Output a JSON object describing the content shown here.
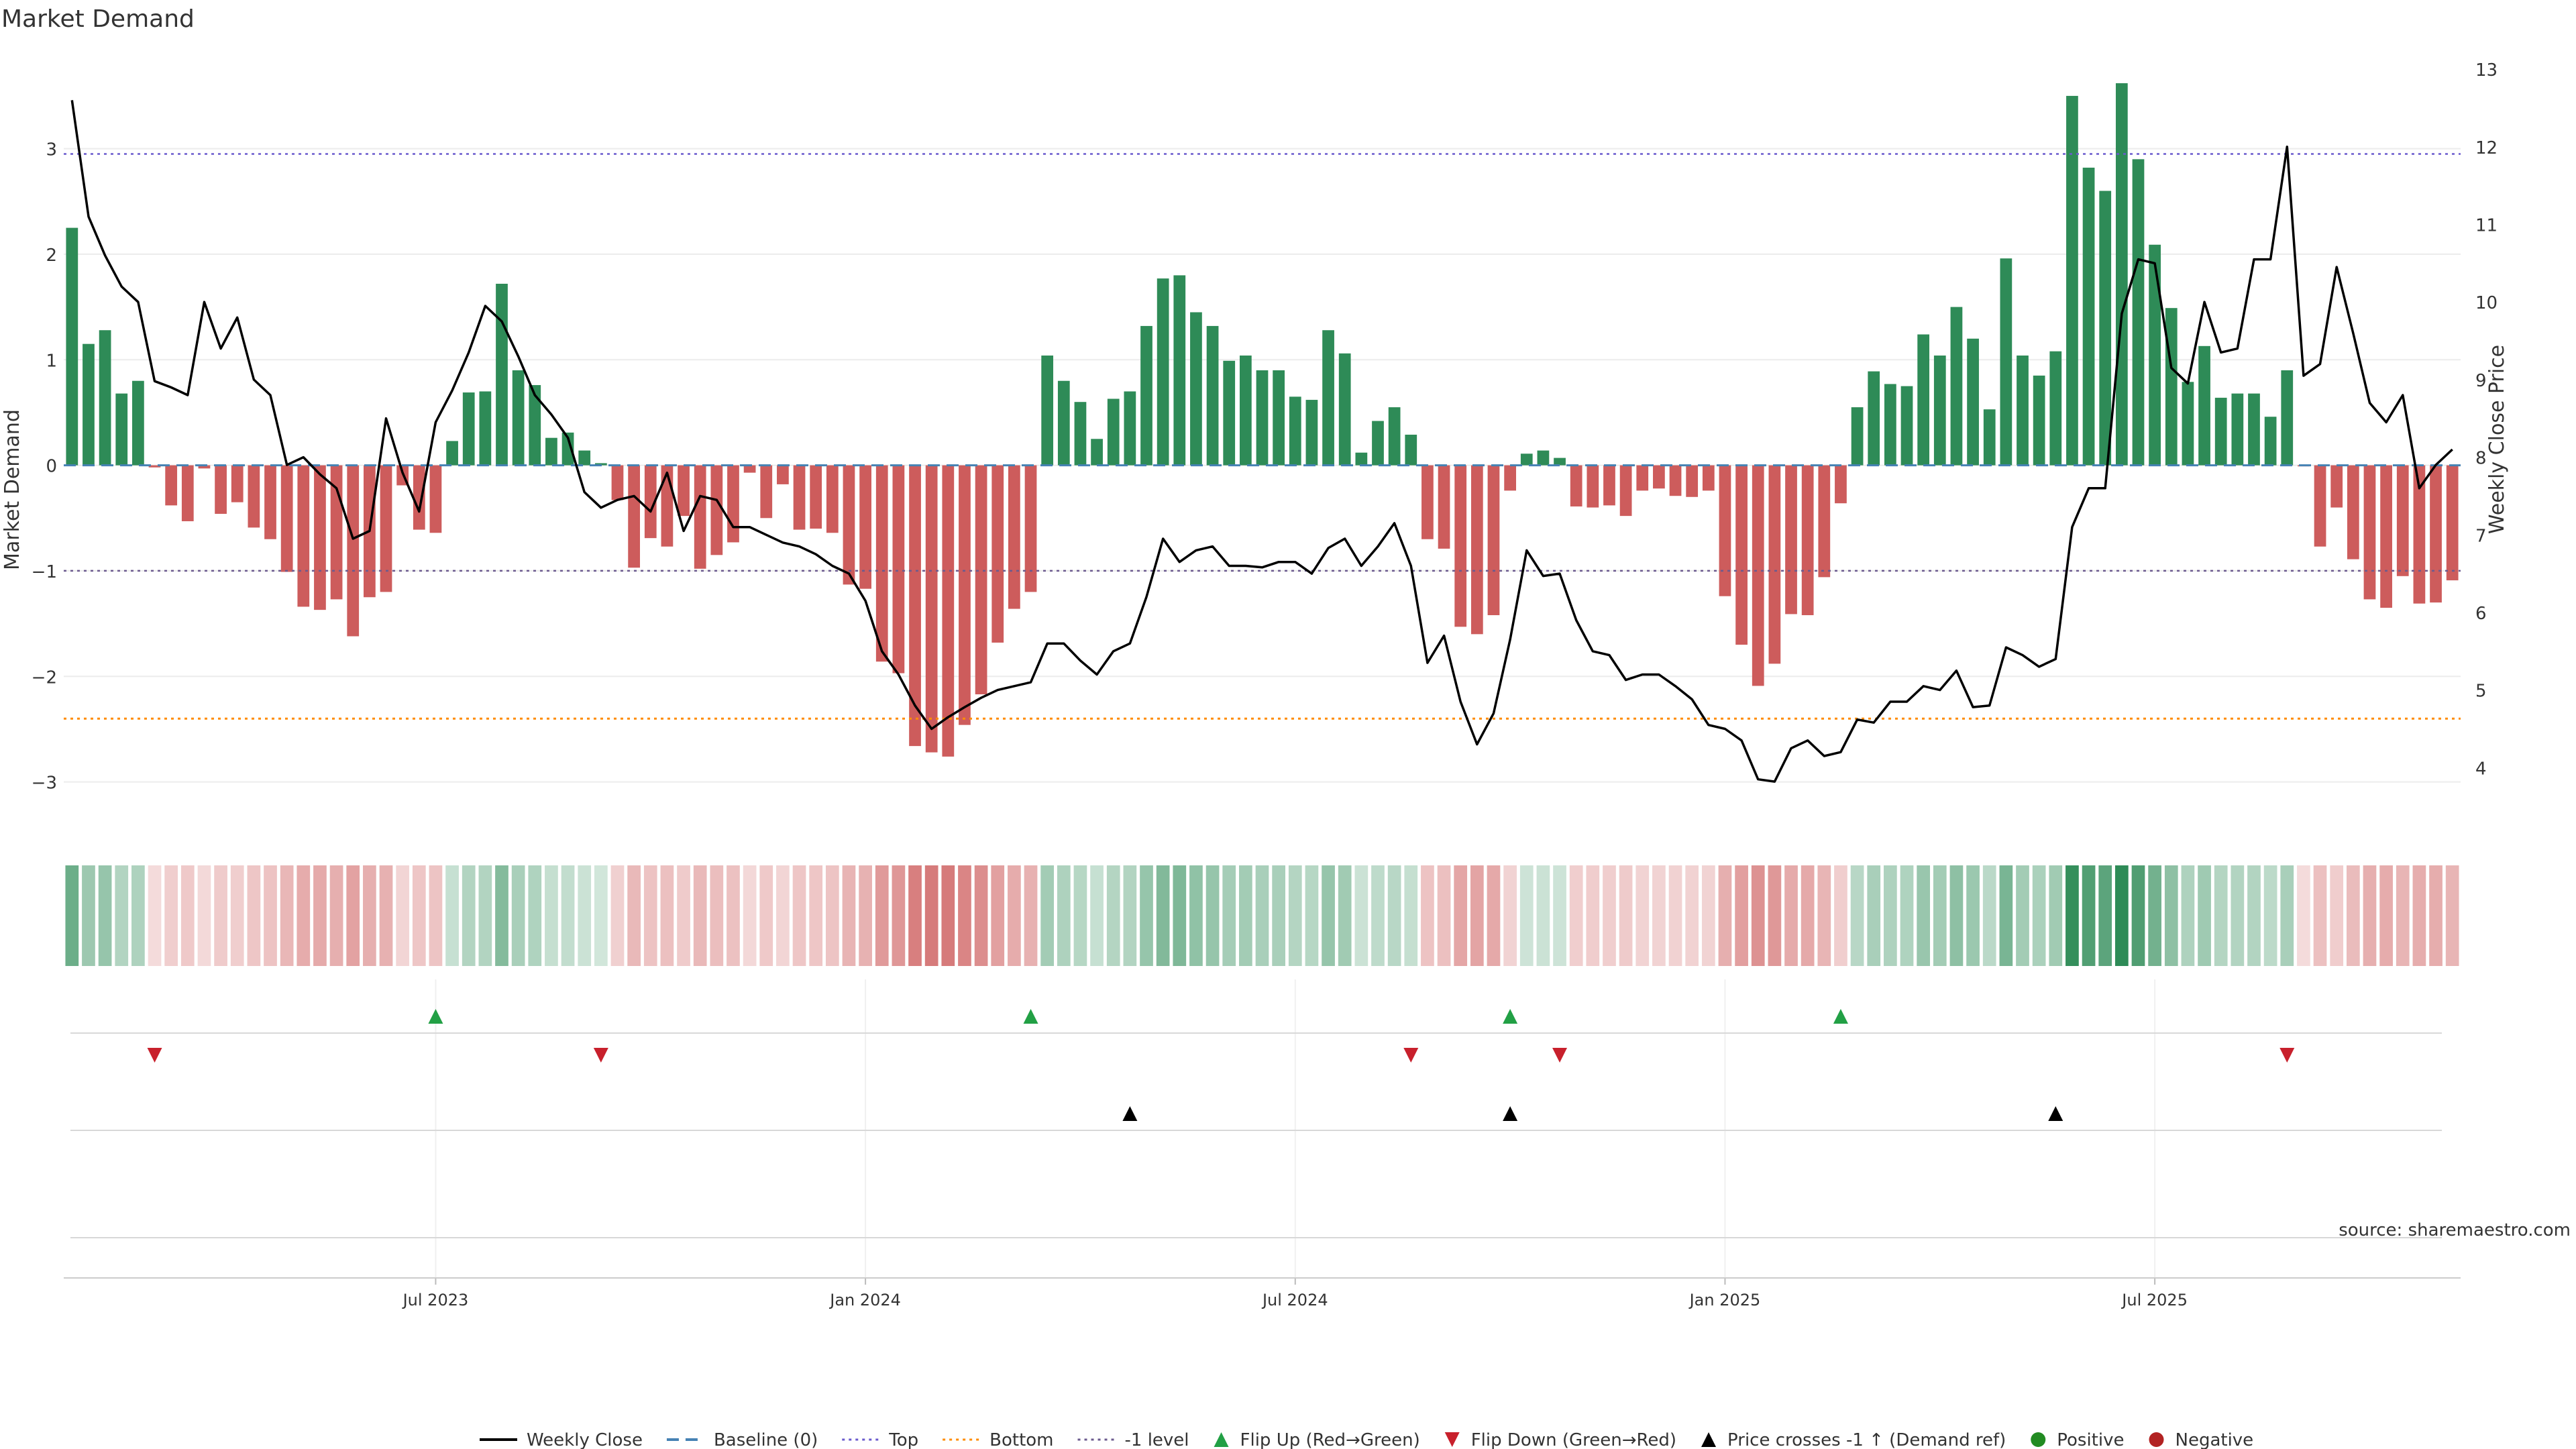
{
  "chart_data": {
    "type": "bar",
    "title": "Market Demand",
    "ylabel_left": "Market Demand",
    "ylabel_right": "Weekly Close Price",
    "source": "source: sharemaestro.com",
    "ylim_left": [
      -3.6,
      3.9
    ],
    "ylim_right": [
      3.0,
      13.2
    ],
    "yticks_left": [
      "−3",
      "−2",
      "−1",
      "0",
      "1",
      "2",
      "3"
    ],
    "yticks_right": [
      "4",
      "5",
      "6",
      "7",
      "8",
      "9",
      "10",
      "11",
      "12",
      "13"
    ],
    "x_tick_labels": [
      "Jul 2023",
      "Jan 2024",
      "Jul 2024",
      "Jan 2025",
      "Jul 2025"
    ],
    "x_tick_weeks": [
      22,
      48,
      74,
      100,
      126
    ],
    "levels": {
      "top": 2.95,
      "bottom": -2.4,
      "minus_one": -1.0
    },
    "demand": [
      2.25,
      1.15,
      1.28,
      0.68,
      0.8,
      -0.02,
      -0.38,
      -0.53,
      -0.03,
      -0.46,
      -0.35,
      -0.59,
      -0.7,
      -1.01,
      -1.34,
      -1.37,
      -1.27,
      -1.62,
      -1.25,
      -1.2,
      -0.19,
      -0.61,
      -0.64,
      0.23,
      0.69,
      0.7,
      1.72,
      0.9,
      0.76,
      0.26,
      0.31,
      0.14,
      0.02,
      -0.33,
      -0.97,
      -0.69,
      -0.77,
      -0.48,
      -0.98,
      -0.85,
      -0.73,
      -0.07,
      -0.5,
      -0.18,
      -0.61,
      -0.6,
      -0.64,
      -1.13,
      -1.17,
      -1.86,
      -1.97,
      -2.66,
      -2.72,
      -2.76,
      -2.46,
      -2.17,
      -1.68,
      -1.36,
      -1.2,
      1.04,
      0.8,
      0.6,
      0.25,
      0.63,
      0.7,
      1.32,
      1.77,
      1.8,
      1.45,
      1.32,
      0.99,
      1.04,
      0.9,
      0.9,
      0.65,
      0.62,
      1.28,
      1.06,
      0.12,
      0.42,
      0.55,
      0.29,
      -0.7,
      -0.79,
      -1.53,
      -1.6,
      -1.42,
      -0.24,
      0.11,
      0.14,
      0.07,
      -0.39,
      -0.4,
      -0.38,
      -0.48,
      -0.24,
      -0.22,
      -0.29,
      -0.3,
      -0.24,
      -1.24,
      -1.7,
      -2.09,
      -1.88,
      -1.41,
      -1.42,
      -1.06,
      -0.36,
      0.55,
      0.89,
      0.77,
      0.75,
      1.24,
      1.04,
      1.5,
      1.2,
      0.53,
      1.96,
      1.04,
      0.85,
      1.08,
      3.5,
      2.82,
      2.6,
      3.62,
      2.9,
      2.09,
      1.49,
      0.79,
      1.13,
      0.64,
      0.68,
      0.68,
      0.46,
      0.9,
      -0.01,
      -0.77,
      -0.4,
      -0.89,
      -1.27,
      -1.35,
      -1.05,
      -1.31,
      -1.3,
      -1.09
    ],
    "close": [
      12.6,
      11.1,
      10.6,
      10.2,
      10.0,
      8.98,
      8.9,
      8.8,
      10.0,
      9.4,
      9.8,
      9.0,
      8.8,
      7.9,
      8.0,
      7.78,
      7.6,
      6.95,
      7.05,
      8.5,
      7.8,
      7.3,
      8.45,
      8.86,
      9.35,
      9.95,
      9.75,
      9.3,
      8.8,
      8.55,
      8.25,
      7.55,
      7.35,
      7.45,
      7.5,
      7.3,
      7.8,
      7.05,
      7.5,
      7.45,
      7.1,
      7.1,
      7.0,
      6.9,
      6.85,
      6.75,
      6.6,
      6.5,
      6.15,
      5.5,
      5.2,
      4.8,
      4.5,
      4.65,
      4.78,
      4.9,
      5.0,
      5.05,
      5.1,
      5.6,
      5.6,
      5.38,
      5.2,
      5.5,
      5.6,
      6.2,
      6.95,
      6.65,
      6.8,
      6.85,
      6.6,
      6.6,
      6.58,
      6.65,
      6.65,
      6.5,
      6.83,
      6.95,
      6.6,
      6.85,
      7.15,
      6.6,
      5.35,
      5.7,
      4.85,
      4.3,
      4.7,
      5.65,
      6.8,
      6.47,
      6.5,
      5.9,
      5.5,
      5.45,
      5.13,
      5.2,
      5.2,
      5.05,
      4.88,
      4.55,
      4.5,
      4.35,
      3.85,
      3.82,
      4.25,
      4.35,
      4.15,
      4.2,
      4.62,
      4.58,
      4.85,
      4.85,
      5.05,
      5.0,
      5.25,
      4.78,
      4.8,
      5.55,
      5.45,
      5.3,
      5.4,
      7.1,
      7.6,
      7.6,
      9.85,
      10.55,
      10.5,
      9.15,
      8.95,
      10.0,
      9.35,
      9.4,
      10.55,
      10.55,
      12.0,
      9.05,
      9.2,
      10.45,
      9.6,
      8.7,
      8.45,
      8.8,
      7.6,
      7.9,
      8.1
    ],
    "flip_up_weeks": [
      22,
      58,
      87,
      107
    ],
    "flip_down_weeks": [
      5,
      32,
      81,
      90,
      134
    ],
    "price_cross_weeks": [
      64,
      87,
      120
    ],
    "legend": [
      "Weekly Close",
      "Baseline (0)",
      "Top",
      "Bottom",
      "-1 level",
      "Flip Up (Red→Green)",
      "Flip Down (Green→Red)",
      "Price crosses -1 ↑ (Demand ref)",
      "Positive",
      "Negative"
    ],
    "colors": {
      "positive": "#2e8b57",
      "negative": "#cd5c5c",
      "price": "#000000",
      "baseline": "#4682b4",
      "top": "#6a5acd",
      "bottom": "#ff8c00",
      "minus_one": "#6b5a8e",
      "flip_up": "#22a045",
      "flip_down": "#c8202c",
      "legend_positive": "#228b22",
      "legend_negative": "#b22222"
    }
  }
}
